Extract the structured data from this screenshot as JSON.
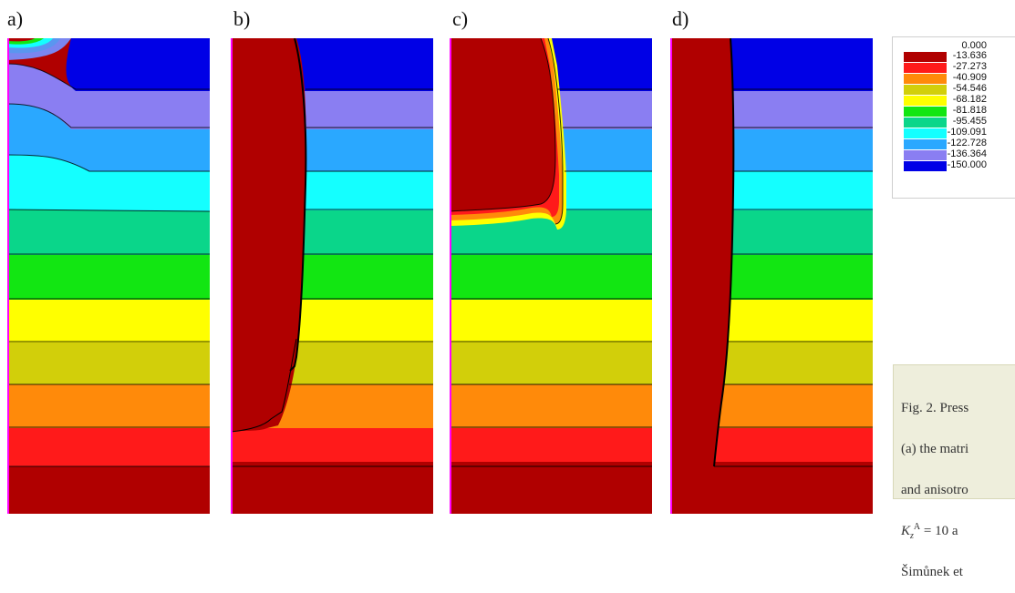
{
  "panels": [
    {
      "label": "a)"
    },
    {
      "label": "b)"
    },
    {
      "label": "c)"
    },
    {
      "label": "d)"
    }
  ],
  "legend": {
    "values": [
      "0.000",
      "-13.636",
      "-27.273",
      "-40.909",
      "-54.546",
      "-68.182",
      "-81.818",
      "-95.455",
      "-109.091",
      "-122.728",
      "-136.364",
      "-150.000"
    ],
    "colors": [
      "#b00000",
      "#ff1a1a",
      "#ff8a0a",
      "#d2cf0a",
      "#ffff00",
      "#12e612",
      "#0ad68a",
      "#14ffff",
      "#2aa8ff",
      "#5a96f0",
      "#8a7ef2",
      "#0000e6"
    ]
  },
  "caption": {
    "line1": "Fig. 2. Press",
    "line2": "(a) the matri",
    "line3": "and anisotro",
    "line4_prefix": "K",
    "line4_sub": "z",
    "line4_sup": "A",
    "line4_rest": " = 10 a",
    "line5": "Šimůnek et"
  }
}
